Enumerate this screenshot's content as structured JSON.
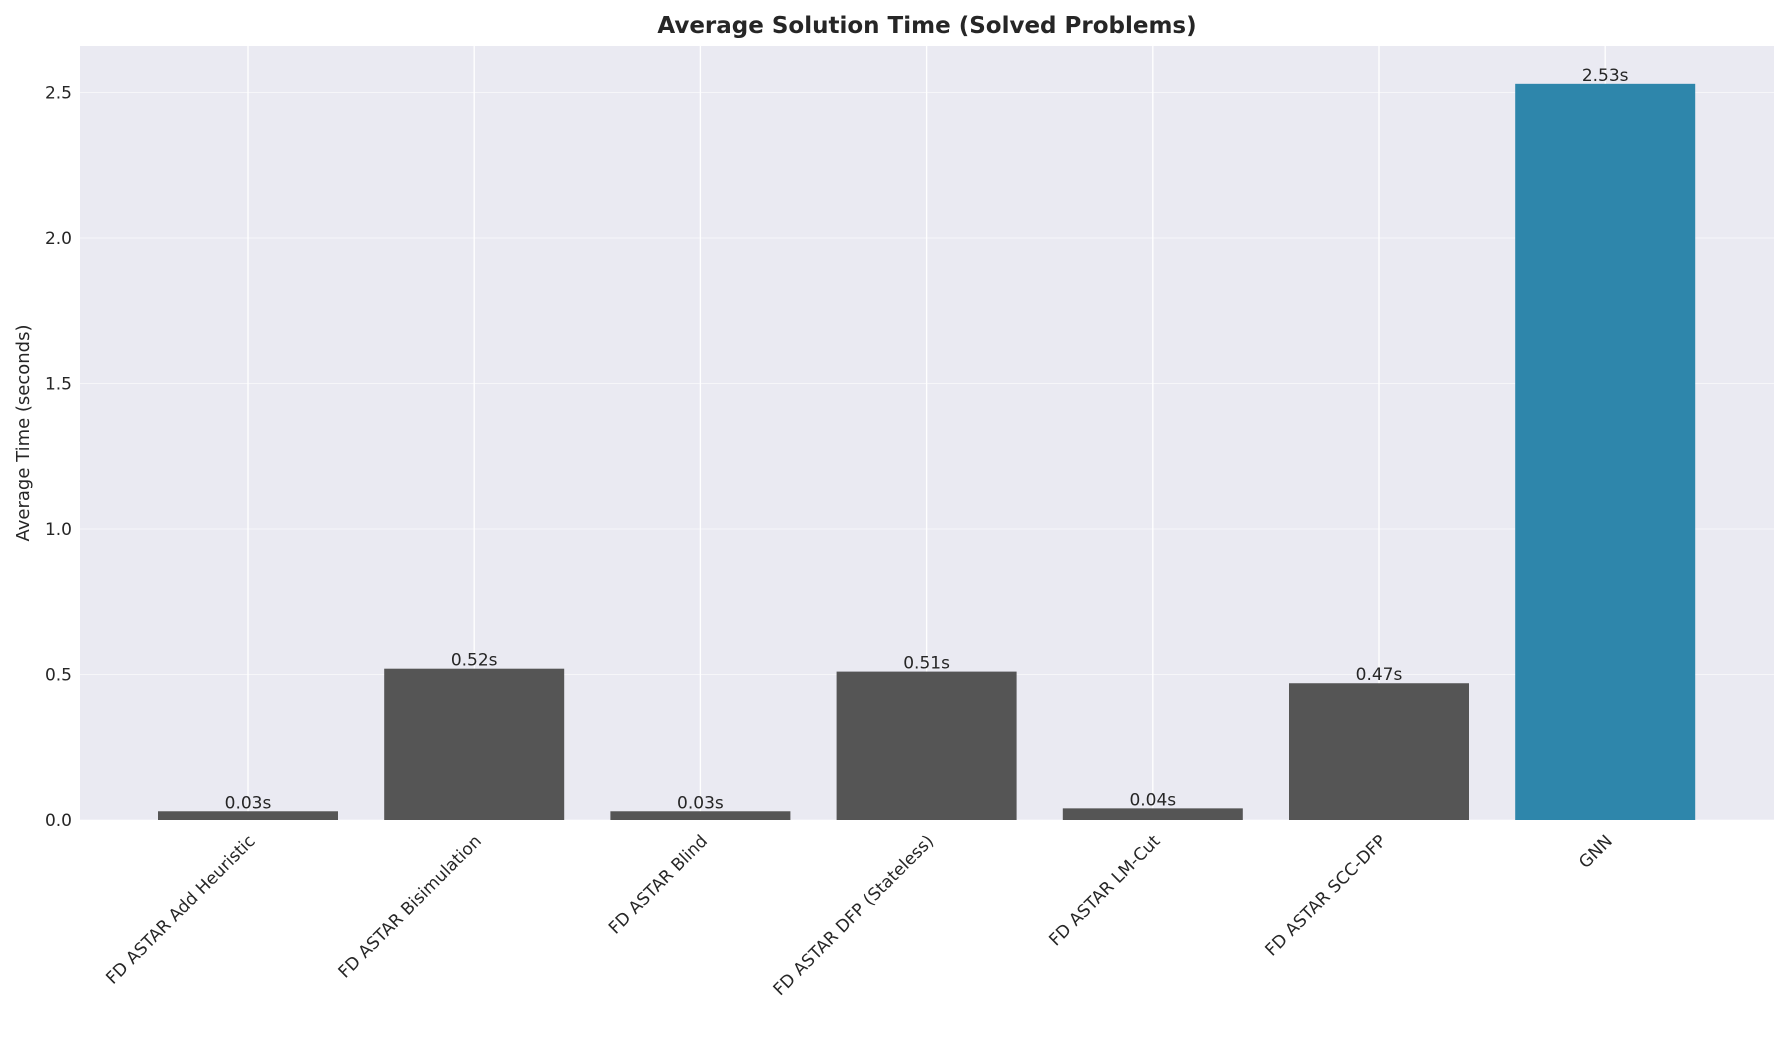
{
  "chart_data": {
    "type": "bar",
    "title": "Average Solution Time (Solved Problems)",
    "xlabel": "",
    "ylabel": "Average Time (seconds)",
    "categories": [
      "FD ASTAR Add Heuristic",
      "FD ASTAR Bisimulation",
      "FD ASTAR Blind",
      "FD ASTAR DFP (Stateless)",
      "FD ASTAR LM-Cut",
      "FD ASTAR SCC-DFP",
      "GNN"
    ],
    "values": [
      0.03,
      0.52,
      0.03,
      0.51,
      0.04,
      0.47,
      2.53
    ],
    "value_labels": [
      "0.03s",
      "0.52s",
      "0.03s",
      "0.51s",
      "0.04s",
      "0.47s",
      "2.53s"
    ],
    "bar_colors": [
      "#555555",
      "#555555",
      "#555555",
      "#555555",
      "#555555",
      "#555555",
      "#2e86ab"
    ],
    "ylim": [
      0,
      2.66
    ],
    "yticks": [
      0.0,
      0.5,
      1.0,
      1.5,
      2.0,
      2.5
    ],
    "ytick_labels": [
      "0.0",
      "0.5",
      "1.0",
      "1.5",
      "2.0",
      "2.5"
    ],
    "grid": true,
    "background_color": "#eaeaf2",
    "grid_color": "#ffffff"
  }
}
